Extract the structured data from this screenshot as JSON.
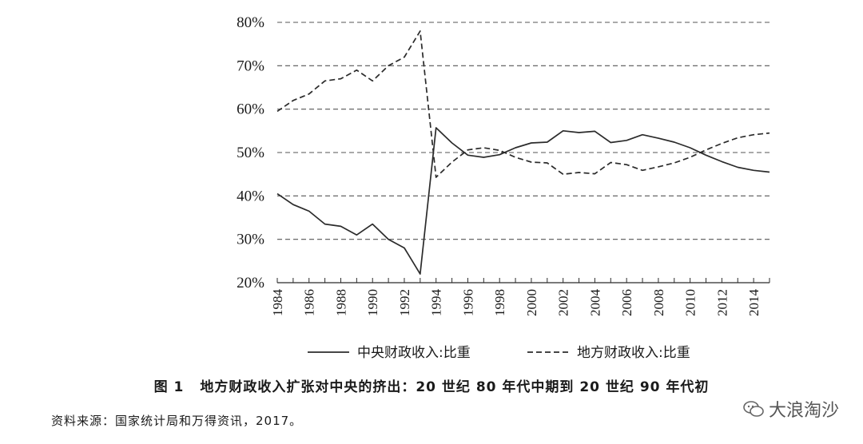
{
  "chart_data": {
    "type": "line",
    "x": [
      1984,
      1985,
      1986,
      1987,
      1988,
      1989,
      1990,
      1991,
      1992,
      1993,
      1994,
      1995,
      1996,
      1997,
      1998,
      1999,
      2000,
      2001,
      2002,
      2003,
      2004,
      2005,
      2006,
      2007,
      2008,
      2009,
      2010,
      2011,
      2012,
      2013,
      2014,
      2015
    ],
    "x_tick_labels": [
      "1984",
      "1986",
      "1988",
      "1990",
      "1992",
      "1994",
      "1996",
      "1998",
      "2000",
      "2002",
      "2004",
      "2006",
      "2008",
      "2010",
      "2012",
      "2014"
    ],
    "y_tick_labels": [
      "20%",
      "30%",
      "40%",
      "50%",
      "60%",
      "70%",
      "80%"
    ],
    "ylim": [
      20,
      80
    ],
    "y_ticks": [
      20,
      30,
      40,
      50,
      60,
      70,
      80
    ],
    "grid": "horizontal dashed",
    "legend_position": "bottom",
    "series": [
      {
        "name": "中央财政收入:比重",
        "style": "solid",
        "values": [
          40.5,
          38.0,
          36.5,
          33.5,
          33.0,
          31.0,
          33.5,
          30.0,
          28.0,
          22.0,
          55.7,
          52.2,
          49.4,
          48.9,
          49.5,
          51.1,
          52.2,
          52.4,
          55.0,
          54.6,
          54.9,
          52.3,
          52.8,
          54.1,
          53.3,
          52.4,
          51.1,
          49.4,
          47.9,
          46.6,
          45.9,
          45.5
        ]
      },
      {
        "name": "地方财政收入:比重",
        "style": "dashed",
        "values": [
          59.5,
          62.0,
          63.5,
          66.5,
          67.0,
          69.0,
          66.5,
          70.0,
          72.0,
          78.0,
          44.3,
          47.8,
          50.6,
          51.1,
          50.5,
          48.9,
          47.8,
          47.6,
          45.0,
          45.4,
          45.1,
          47.7,
          47.2,
          45.9,
          46.7,
          47.6,
          48.9,
          50.6,
          52.1,
          53.4,
          54.1,
          54.5
        ]
      }
    ]
  },
  "caption": {
    "figure_label": "图 1",
    "text": "地方财政收入扩张对中央的挤出：20 世纪 80 年代中期到 20 世纪 90 年代初"
  },
  "source_note": "资料来源：国家统计局和万得资讯，2017。",
  "watermark": {
    "icon": "chat-bubble-icon",
    "text": "大浪淘沙"
  },
  "colors": {
    "line": "#2b2b2b",
    "grid": "#555555"
  }
}
